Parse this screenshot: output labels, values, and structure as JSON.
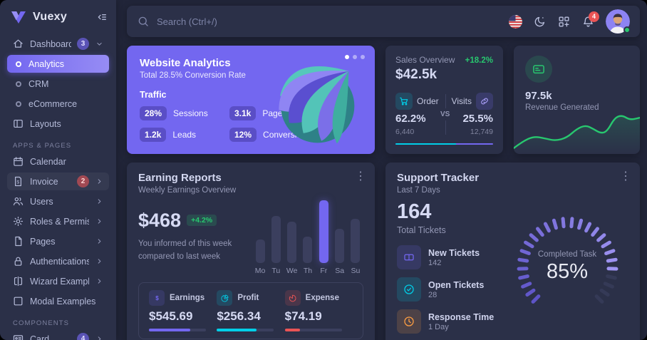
{
  "brand": {
    "name": "Vuexy"
  },
  "topbar": {
    "search_placeholder": "Search (Ctrl+/)",
    "notification_count": "4"
  },
  "sidebar": {
    "items": [
      {
        "type": "item",
        "icon": "home",
        "label": "Dashboard",
        "badge": "3",
        "badge_color": "purple",
        "chevron": "down"
      },
      {
        "type": "sub",
        "label": "Analytics",
        "active": true
      },
      {
        "type": "sub",
        "label": "CRM"
      },
      {
        "type": "sub",
        "label": "eCommerce"
      },
      {
        "type": "item",
        "icon": "layouts",
        "label": "Layouts"
      },
      {
        "type": "header",
        "label": "APPS & PAGES"
      },
      {
        "type": "item",
        "icon": "calendar",
        "label": "Calendar"
      },
      {
        "type": "item",
        "icon": "invoice",
        "label": "Invoice",
        "badge": "2",
        "badge_color": "red",
        "chevron": "right",
        "highlighted": true
      },
      {
        "type": "item",
        "icon": "users",
        "label": "Users",
        "chevron": "right"
      },
      {
        "type": "item",
        "icon": "gear",
        "label": "Roles & Permissions",
        "chevron": "right"
      },
      {
        "type": "item",
        "icon": "file",
        "label": "Pages",
        "chevron": "right"
      },
      {
        "type": "item",
        "icon": "lock",
        "label": "Authentications",
        "chevron": "right"
      },
      {
        "type": "item",
        "icon": "wizard",
        "label": "Wizard Examples",
        "chevron": "right"
      },
      {
        "type": "item",
        "icon": "modal",
        "label": "Modal Examples"
      },
      {
        "type": "header",
        "label": "COMPONENTS"
      },
      {
        "type": "item",
        "icon": "card",
        "label": "Card",
        "badge": "4",
        "badge_color": "purple",
        "chevron": "right"
      }
    ]
  },
  "website_analytics": {
    "title": "Website Analytics",
    "subtitle": "Total 28.5% Conversion Rate",
    "section_label": "Traffic",
    "stats": [
      {
        "value": "28%",
        "label": "Sessions"
      },
      {
        "value": "3.1k",
        "label": "Page Views"
      },
      {
        "value": "1.2k",
        "label": "Leads"
      },
      {
        "value": "12%",
        "label": "Conversions"
      }
    ]
  },
  "sales_overview": {
    "title": "Sales Overview",
    "delta": "+18.2%",
    "total": "$42.5k",
    "vs_label": "VS",
    "order": {
      "label": "Order",
      "pct": "62.2%",
      "count": "6,440"
    },
    "visits": {
      "label": "Visits",
      "pct": "25.5%",
      "count": "12,749"
    },
    "progress_pct": 62
  },
  "revenue_generated": {
    "value": "97.5k",
    "label": "Revenue Generated",
    "chart_data": {
      "type": "area",
      "x": [
        0,
        7,
        16,
        25,
        33,
        42,
        50,
        57,
        63,
        69,
        74,
        80,
        86,
        92,
        100
      ],
      "y": [
        8,
        26,
        40,
        34,
        28,
        36,
        60,
        70,
        60,
        48,
        53,
        90,
        97,
        84,
        90
      ],
      "color": "#28c76f"
    }
  },
  "earning_reports": {
    "title": "Earning Reports",
    "subtitle": "Weekly Earnings Overview",
    "amount": "$468",
    "delta": "+4.2%",
    "note_line1": "You informed of this week",
    "note_line2": "compared to last week",
    "chart_data": {
      "type": "bar",
      "categories": [
        "Mo",
        "Tu",
        "We",
        "Th",
        "Fr",
        "Sa",
        "Su"
      ],
      "values_pct": [
        38,
        75,
        66,
        42,
        100,
        54,
        70
      ],
      "highlight_index": 4,
      "bar_color": "#3b3f5e",
      "highlight_color": "#7367f0"
    },
    "breakdown": [
      {
        "icon": "dollar",
        "label": "Earnings",
        "value": "$545.69",
        "pct": 72,
        "color": "#7367f0"
      },
      {
        "icon": "pie",
        "label": "Profit",
        "value": "$256.34",
        "pct": 69,
        "color": "#00cfe8"
      },
      {
        "icon": "expense",
        "label": "Expense",
        "value": "$74.19",
        "pct": 27,
        "color": "#ea5455"
      }
    ]
  },
  "support_tracker": {
    "title": "Support Tracker",
    "subtitle": "Last 7 Days",
    "total": "164",
    "total_label": "Total Tickets",
    "items": [
      {
        "icon": "ticket",
        "label": "New Tickets",
        "sub": "142",
        "color": "#7367f0"
      },
      {
        "icon": "check-circle",
        "label": "Open Tickets",
        "sub": "28",
        "color": "#00cfe8"
      },
      {
        "icon": "clock",
        "label": "Response Time",
        "sub": "1 Day",
        "color": "#ff9f43"
      }
    ],
    "gauge": {
      "label": "Completed Task",
      "value": "85%",
      "percent": 85,
      "segments": 26,
      "type": "radial"
    }
  },
  "colors": {
    "primary": "#7367f0",
    "success": "#28c76f",
    "cyan": "#00cfe8",
    "red": "#ea5455",
    "orange": "#ff9f43"
  }
}
